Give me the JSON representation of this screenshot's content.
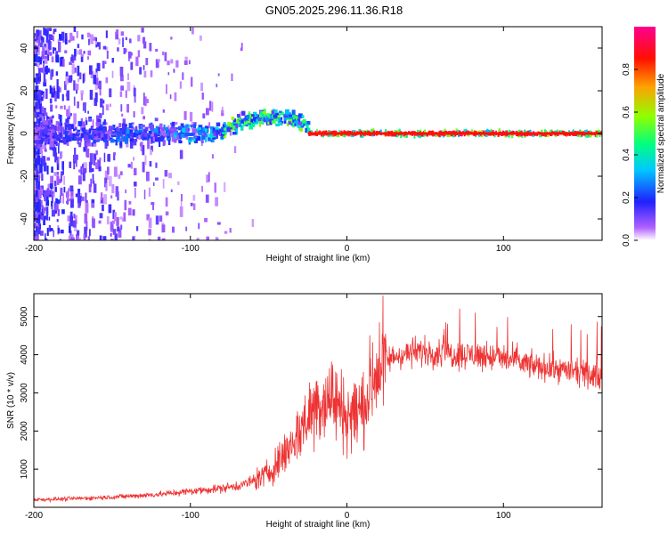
{
  "title": "GN05.2025.296.11.36.R18",
  "chart_data": [
    {
      "type": "heatmap",
      "title": "GN05.2025.296.11.36.R18",
      "xlabel": "Height of straight line (km)",
      "ylabel": "Frequency (Hz)",
      "xlim": [
        -200,
        163
      ],
      "ylim": [
        -50,
        50
      ],
      "xticks": [
        -200,
        -100,
        0,
        100
      ],
      "yticks": [
        -40,
        -20,
        0,
        20,
        40
      ],
      "colorbar": {
        "label": "Normalized spectral amplitude",
        "range": [
          0,
          1
        ],
        "ticks": [
          0.0,
          0.2,
          0.4,
          0.6,
          0.8
        ],
        "colormap": [
          "#ffffff",
          "#a040ff",
          "#2020ff",
          "#00d0ff",
          "#00ff60",
          "#c0ff00",
          "#ff8000",
          "#ff0000",
          "#ff0090"
        ]
      },
      "description_values": {
        "noise_region_x": [
          -200,
          -80
        ],
        "tone_transition_x": [
          -80,
          -25
        ],
        "stable_tone_x": [
          -25,
          163
        ],
        "stable_tone_frequency": 0
      }
    },
    {
      "type": "line",
      "xlabel": "Height of straight line (km)",
      "ylabel": "SNR (10 * v/v)",
      "xlim": [
        -200,
        163
      ],
      "ylim": [
        0,
        5600
      ],
      "xticks": [
        -200,
        -100,
        0,
        100
      ],
      "yticks": [
        1000,
        2000,
        3000,
        4000,
        5000
      ],
      "color": "#ee3333",
      "series": [
        {
          "name": "SNR",
          "x": [
            -200,
            -180,
            -160,
            -140,
            -120,
            -100,
            -80,
            -70,
            -60,
            -50,
            -40,
            -30,
            -20,
            -10,
            0,
            10,
            20,
            30,
            40,
            50,
            60,
            70,
            80,
            90,
            100,
            110,
            120,
            130,
            140,
            150,
            163
          ],
          "y": [
            200,
            220,
            250,
            290,
            340,
            420,
            500,
            560,
            680,
            900,
            1400,
            2000,
            2700,
            2900,
            2400,
            2600,
            3700,
            3950,
            4050,
            4100,
            4050,
            4000,
            4000,
            3950,
            3900,
            3800,
            3700,
            3650,
            3600,
            3500,
            3400
          ]
        }
      ]
    }
  ]
}
